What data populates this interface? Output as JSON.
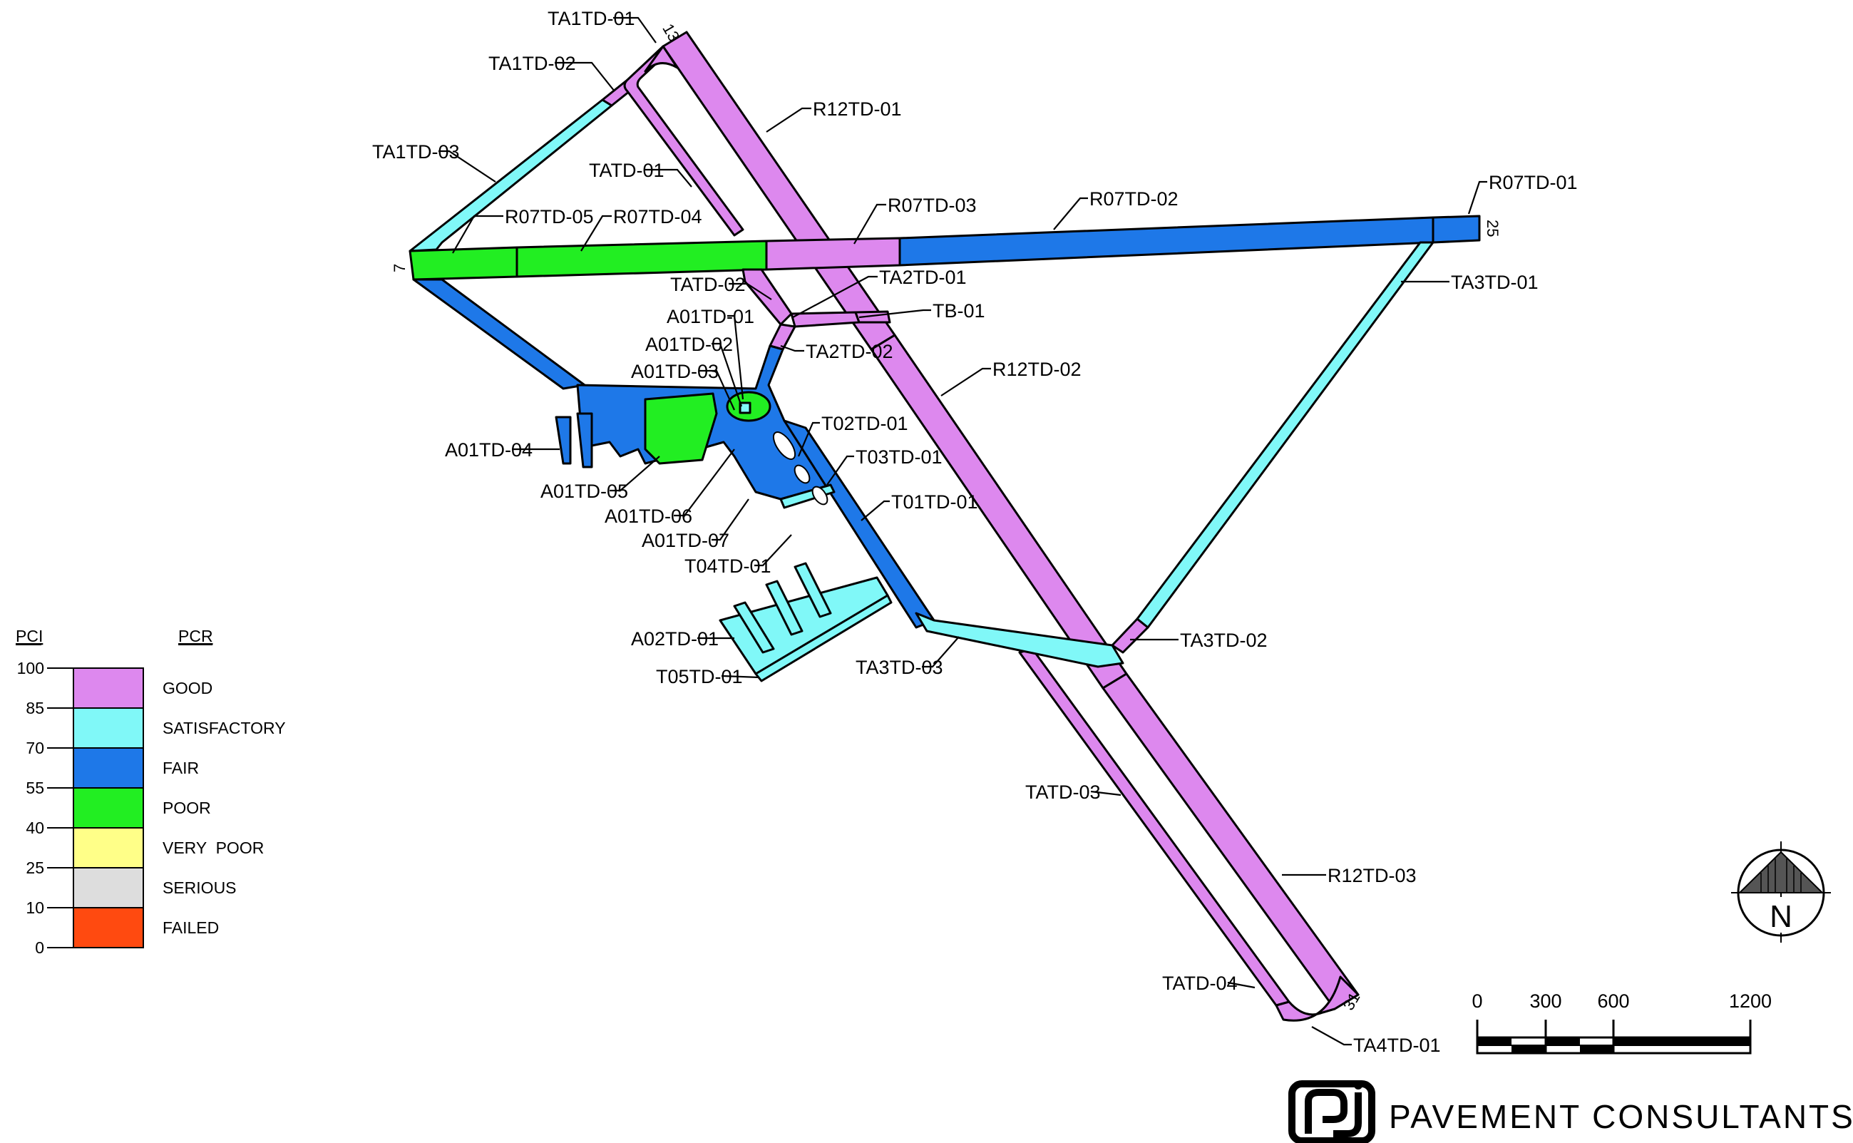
{
  "colors": {
    "good": "#dd88ee",
    "satisfactory": "#80f8f8",
    "fair": "#1e78e8",
    "poor": "#22ee22",
    "very_poor": "#ffff88",
    "serious": "#dddddd",
    "failed": "#ff4a10"
  },
  "legend": {
    "pci_header": "PCI",
    "pcr_header": "PCR",
    "ticks": [
      "100",
      "85",
      "70",
      "55",
      "40",
      "25",
      "10",
      "0"
    ],
    "ratings": [
      {
        "label": "GOOD",
        "color": "#dd88ee"
      },
      {
        "label": "SATISFACTORY",
        "color": "#80f8f8"
      },
      {
        "label": "FAIR",
        "color": "#1e78e8"
      },
      {
        "label": "POOR",
        "color": "#22ee22"
      },
      {
        "label": "VERY  POOR",
        "color": "#ffff88"
      },
      {
        "label": "SERIOUS",
        "color": "#dddddd"
      },
      {
        "label": "FAILED",
        "color": "#ff4a10"
      }
    ]
  },
  "runway_numbers": {
    "r13": "13",
    "r25": "25",
    "r07": "7",
    "r31": "31"
  },
  "section_labels": {
    "TA1TD_01": "TA1TD-01",
    "TA1TD_02": "TA1TD-02",
    "TA1TD_03": "TA1TD-03",
    "R12TD_01": "R12TD-01",
    "TATD_01": "TATD-01",
    "R07TD_05": "R07TD-05",
    "R07TD_04": "R07TD-04",
    "R07TD_03": "R07TD-03",
    "R07TD_02": "R07TD-02",
    "R07TD_01": "R07TD-01",
    "TATD_02": "TATD-02",
    "TA2TD_01": "TA2TD-01",
    "TB_01": "TB-01",
    "TA3TD_01": "TA3TD-01",
    "A01TD_01": "A01TD-01",
    "A01TD_02": "A01TD-02",
    "A01TD_03": "A01TD-03",
    "TA2TD_02": "TA2TD-02",
    "R12TD_02": "R12TD-02",
    "A01TD_04": "A01TD-04",
    "A01TD_05": "A01TD-05",
    "T02TD_01": "T02TD-01",
    "T03TD_01": "T03TD-01",
    "A01TD_06": "A01TD-06",
    "A01TD_07": "A01TD-07",
    "T01TD_01": "T01TD-01",
    "T04TD_01": "T04TD-01",
    "A02TD_01": "A02TD-01",
    "T05TD_01": "T05TD-01",
    "TA3TD_03": "TA3TD-03",
    "TA3TD_02": "TA3TD-02",
    "TATD_03": "TATD-03",
    "R12TD_03": "R12TD-03",
    "TATD_04": "TATD-04",
    "TA4TD_01": "TA4TD-01"
  },
  "north_arrow": {
    "letter": "N"
  },
  "scale_bar": {
    "ticks": [
      "0",
      "300",
      "600",
      "1200"
    ]
  },
  "brand": {
    "name": "PAVEMENT CONSULTANTS INC."
  }
}
